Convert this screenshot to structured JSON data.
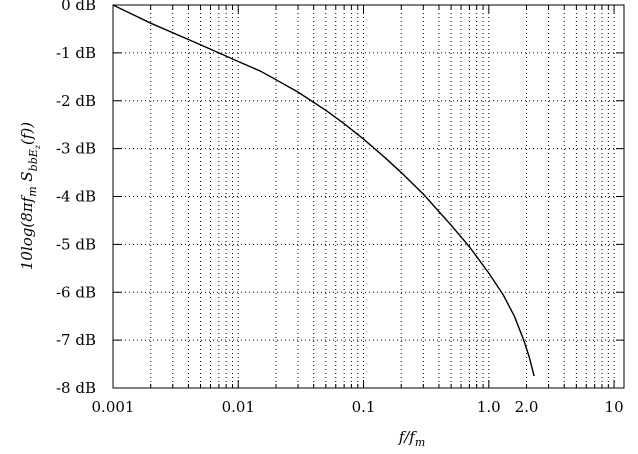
{
  "chart_data": {
    "type": "line",
    "title": "",
    "xlabel": "f/f_m",
    "ylabel": "10log(8πf_m S_bbEz(f))",
    "x_scale": "log",
    "xlim": [
      0.001,
      12
    ],
    "ylim": [
      -8,
      0
    ],
    "grid": true,
    "x_ticks": [
      {
        "value": 0.001,
        "label": "0.001"
      },
      {
        "value": 0.01,
        "label": "0.01"
      },
      {
        "value": 0.1,
        "label": "0.1"
      },
      {
        "value": 1.0,
        "label": "1.0"
      },
      {
        "value": 2.0,
        "label": "2.0"
      },
      {
        "value": 10,
        "label": "10"
      }
    ],
    "y_ticks": [
      {
        "value": 0,
        "label": "0 dB"
      },
      {
        "value": -1,
        "label": "-1 dB"
      },
      {
        "value": -2,
        "label": "-2 dB"
      },
      {
        "value": -3,
        "label": "-3 dB"
      },
      {
        "value": -4,
        "label": "-4 dB"
      },
      {
        "value": -5,
        "label": "-5 dB"
      },
      {
        "value": -6,
        "label": "-6 dB"
      },
      {
        "value": -7,
        "label": "-7 dB"
      },
      {
        "value": -8,
        "label": "-8 dB"
      }
    ],
    "series": [
      {
        "x": [
          0.001,
          0.002,
          0.004,
          0.007,
          0.01,
          0.015,
          0.02,
          0.03,
          0.05,
          0.07,
          0.1,
          0.15,
          0.2,
          0.3,
          0.5,
          0.7,
          1.0,
          1.3,
          1.6,
          1.9,
          2.1,
          2.3
        ],
        "y": [
          0.0,
          -0.38,
          -0.72,
          -1.0,
          -1.18,
          -1.38,
          -1.56,
          -1.82,
          -2.2,
          -2.48,
          -2.8,
          -3.2,
          -3.5,
          -3.95,
          -4.6,
          -5.05,
          -5.6,
          -6.05,
          -6.5,
          -7.0,
          -7.35,
          -7.75
        ]
      }
    ]
  }
}
